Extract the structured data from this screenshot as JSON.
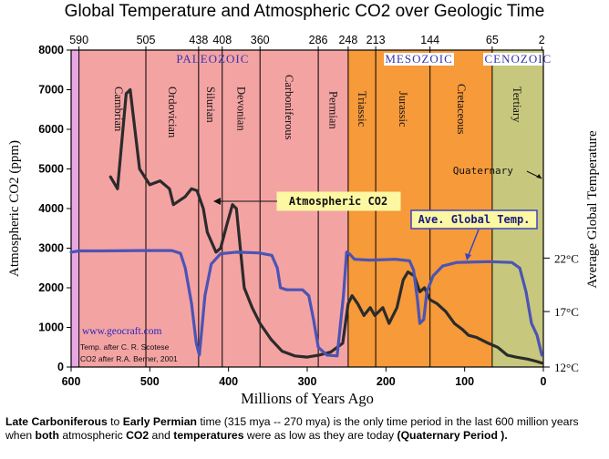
{
  "chart_data": {
    "type": "line",
    "title": "Global Temperature and Atmospheric CO2 over Geologic Time",
    "xlabel": "Millions of Years Ago",
    "ylabel": "Atmospheric CO2 (ppm)",
    "y2label": "Average Global Temperature",
    "xlim": [
      600,
      0
    ],
    "ylim": [
      0,
      8000
    ],
    "x_ticks": [
      600,
      500,
      400,
      300,
      200,
      100,
      0
    ],
    "y_ticks": [
      0,
      1000,
      2000,
      3000,
      4000,
      5000,
      6000,
      7000,
      8000
    ],
    "top_ticks": [
      "590",
      "505",
      "438",
      "408",
      "360",
      "286",
      "248",
      "213",
      "144",
      "65",
      "2"
    ],
    "y2_ticks": [
      {
        "label": "12°C",
        "value": 0
      },
      {
        "label": "17°C",
        "value": 1400
      },
      {
        "label": "22°C",
        "value": 2750
      }
    ],
    "eras": [
      {
        "name": "PALEOZOIC",
        "start": 590,
        "end": 248,
        "color": "#f4a3a3"
      },
      {
        "name": "MESOZOIC",
        "start": 248,
        "end": 65,
        "color": "#f69a3a"
      },
      {
        "name": "CENOZOIC",
        "start": 65,
        "end": 0,
        "color": "#c7c87e"
      }
    ],
    "precambrian": {
      "start": 600,
      "end": 590,
      "color": "#e9a6e3"
    },
    "periods": [
      {
        "name": "Cambrian",
        "start": 590,
        "end": 505
      },
      {
        "name": "Ordovician",
        "start": 505,
        "end": 438
      },
      {
        "name": "Silurian",
        "start": 438,
        "end": 408
      },
      {
        "name": "Devonian",
        "start": 408,
        "end": 360
      },
      {
        "name": "Carboniferous",
        "start": 360,
        "end": 286
      },
      {
        "name": "Permian",
        "start": 286,
        "end": 248
      },
      {
        "name": "Triassic",
        "start": 248,
        "end": 213
      },
      {
        "name": "Jurassic",
        "start": 213,
        "end": 144
      },
      {
        "name": "Cretaceous",
        "start": 144,
        "end": 65
      },
      {
        "name": "Tertiary",
        "start": 65,
        "end": 2
      }
    ],
    "quaternary_label": "Quaternary",
    "series": [
      {
        "name": "Atmospheric CO2",
        "color": "#2b2b2b",
        "points": [
          [
            550,
            4800
          ],
          [
            541,
            4500
          ],
          [
            530,
            6900
          ],
          [
            525,
            7000
          ],
          [
            513,
            5000
          ],
          [
            500,
            4600
          ],
          [
            487,
            4700
          ],
          [
            475,
            4500
          ],
          [
            470,
            4100
          ],
          [
            455,
            4300
          ],
          [
            447,
            4500
          ],
          [
            440,
            4450
          ],
          [
            432,
            4000
          ],
          [
            427,
            3400
          ],
          [
            416,
            2900
          ],
          [
            410,
            3000
          ],
          [
            402,
            3600
          ],
          [
            395,
            4100
          ],
          [
            390,
            4000
          ],
          [
            380,
            2000
          ],
          [
            370,
            1500
          ],
          [
            360,
            1100
          ],
          [
            346,
            700
          ],
          [
            332,
            400
          ],
          [
            316,
            280
          ],
          [
            300,
            250
          ],
          [
            285,
            300
          ],
          [
            270,
            380
          ],
          [
            255,
            600
          ],
          [
            248,
            1600
          ],
          [
            243,
            1800
          ],
          [
            236,
            1600
          ],
          [
            228,
            1300
          ],
          [
            220,
            1500
          ],
          [
            214,
            1300
          ],
          [
            204,
            1500
          ],
          [
            196,
            1100
          ],
          [
            186,
            1500
          ],
          [
            178,
            2200
          ],
          [
            172,
            2400
          ],
          [
            164,
            2300
          ],
          [
            157,
            1900
          ],
          [
            151,
            2000
          ],
          [
            144,
            1700
          ],
          [
            135,
            1600
          ],
          [
            124,
            1400
          ],
          [
            113,
            1100
          ],
          [
            103,
            950
          ],
          [
            95,
            800
          ],
          [
            85,
            750
          ],
          [
            70,
            600
          ],
          [
            58,
            500
          ],
          [
            46,
            300
          ],
          [
            35,
            250
          ],
          [
            20,
            200
          ],
          [
            10,
            150
          ],
          [
            2,
            100
          ]
        ]
      },
      {
        "name": "Ave. Global Temp.",
        "color": "#4c54b4",
        "points": [
          [
            600,
            2900
          ],
          [
            590,
            2930
          ],
          [
            560,
            2930
          ],
          [
            510,
            2940
          ],
          [
            472,
            2940
          ],
          [
            461,
            2870
          ],
          [
            455,
            2500
          ],
          [
            447,
            1600
          ],
          [
            441,
            600
          ],
          [
            437,
            300
          ],
          [
            430,
            1800
          ],
          [
            422,
            2600
          ],
          [
            410,
            2860
          ],
          [
            390,
            2900
          ],
          [
            362,
            2880
          ],
          [
            345,
            2820
          ],
          [
            338,
            2500
          ],
          [
            334,
            2000
          ],
          [
            326,
            1950
          ],
          [
            306,
            1950
          ],
          [
            298,
            1800
          ],
          [
            292,
            1200
          ],
          [
            286,
            500
          ],
          [
            275,
            300
          ],
          [
            262,
            280
          ],
          [
            254,
            1800
          ],
          [
            250,
            2900
          ],
          [
            246,
            2850
          ],
          [
            240,
            2720
          ],
          [
            220,
            2700
          ],
          [
            188,
            2720
          ],
          [
            170,
            2680
          ],
          [
            165,
            2450
          ],
          [
            160,
            1700
          ],
          [
            157,
            1100
          ],
          [
            152,
            1200
          ],
          [
            148,
            1900
          ],
          [
            140,
            2300
          ],
          [
            128,
            2550
          ],
          [
            110,
            2640
          ],
          [
            70,
            2660
          ],
          [
            40,
            2640
          ],
          [
            30,
            2500
          ],
          [
            22,
            1900
          ],
          [
            15,
            1100
          ],
          [
            8,
            800
          ],
          [
            2,
            300
          ]
        ]
      }
    ],
    "annotations": [
      {
        "text": "Atmospheric CO2",
        "boxed": true
      },
      {
        "text": "Ave. Global Temp.",
        "boxed": true
      },
      {
        "text": "www.geocraft.com"
      },
      {
        "text": "Temp. after C. R. Scotese"
      },
      {
        "text": "CO2 after R.A. Berner, 2001"
      }
    ]
  },
  "caption": {
    "p1": "Late Carboniferous",
    "p2": " to ",
    "p3": "Early Permian",
    "p4": " time (315 mya -- 270 mya) is the only time period in the last 600 million years when ",
    "p5": "both",
    "p6": " atmospheric ",
    "p7": "CO2",
    "p8": " and ",
    "p9": "temperatures",
    "p10": " were as low as they are today ",
    "p11": "(Quaternary Period",
    "p12": " )."
  }
}
